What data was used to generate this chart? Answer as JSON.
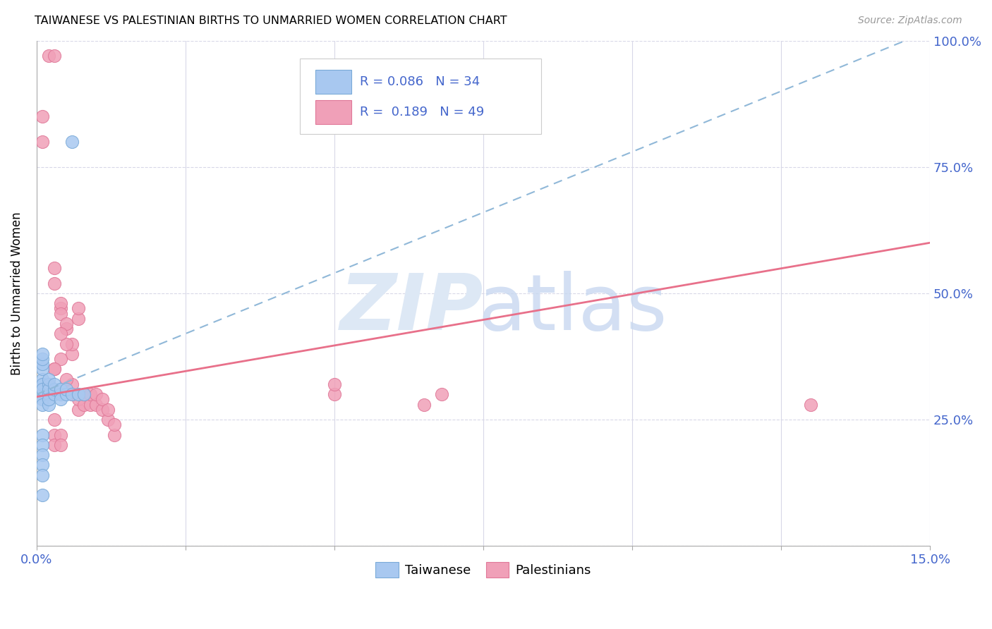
{
  "title": "TAIWANESE VS PALESTINIAN BIRTHS TO UNMARRIED WOMEN CORRELATION CHART",
  "source": "Source: ZipAtlas.com",
  "xlabel_taiwanese": "Taiwanese",
  "xlabel_palestinian": "Palestinians",
  "ylabel": "Births to Unmarried Women",
  "xlim": [
    0.0,
    0.15
  ],
  "ylim": [
    0.0,
    1.0
  ],
  "R_taiwanese": 0.086,
  "N_taiwanese": 34,
  "R_palestinian": 0.189,
  "N_palestinian": 49,
  "color_taiwanese": "#a8c8f0",
  "color_palestinian": "#f0a0b8",
  "color_tw_edge": "#7aaad8",
  "color_pal_edge": "#e07898",
  "color_tw_line": "#90b8d8",
  "color_pal_line": "#e8708a",
  "color_text_blue": "#4466cc",
  "background_color": "#ffffff",
  "grid_color": "#d8d8e8",
  "tw_x": [
    0.001,
    0.001,
    0.001,
    0.001,
    0.001,
    0.001,
    0.001,
    0.001,
    0.001,
    0.001,
    0.002,
    0.002,
    0.002,
    0.002,
    0.002,
    0.002,
    0.003,
    0.003,
    0.003,
    0.004,
    0.004,
    0.004,
    0.005,
    0.005,
    0.006,
    0.007,
    0.008,
    0.001,
    0.001,
    0.001,
    0.001,
    0.001,
    0.001,
    0.006
  ],
  "tw_y": [
    0.33,
    0.35,
    0.36,
    0.37,
    0.38,
    0.3,
    0.32,
    0.29,
    0.31,
    0.28,
    0.3,
    0.32,
    0.31,
    0.33,
    0.28,
    0.29,
    0.3,
    0.31,
    0.32,
    0.3,
    0.31,
    0.29,
    0.3,
    0.31,
    0.3,
    0.3,
    0.3,
    0.22,
    0.2,
    0.18,
    0.16,
    0.14,
    0.1,
    0.8
  ],
  "pal_x": [
    0.002,
    0.003,
    0.001,
    0.001,
    0.003,
    0.003,
    0.004,
    0.004,
    0.004,
    0.005,
    0.005,
    0.006,
    0.006,
    0.007,
    0.007,
    0.003,
    0.004,
    0.005,
    0.004,
    0.002,
    0.002,
    0.006,
    0.006,
    0.005,
    0.003,
    0.007,
    0.007,
    0.008,
    0.008,
    0.009,
    0.009,
    0.01,
    0.01,
    0.011,
    0.011,
    0.012,
    0.012,
    0.013,
    0.013,
    0.05,
    0.05,
    0.065,
    0.068,
    0.003,
    0.003,
    0.003,
    0.004,
    0.004,
    0.13
  ],
  "pal_y": [
    0.97,
    0.97,
    0.85,
    0.8,
    0.55,
    0.52,
    0.47,
    0.48,
    0.46,
    0.43,
    0.44,
    0.38,
    0.4,
    0.45,
    0.47,
    0.35,
    0.37,
    0.4,
    0.42,
    0.3,
    0.32,
    0.3,
    0.32,
    0.33,
    0.35,
    0.27,
    0.29,
    0.28,
    0.3,
    0.28,
    0.3,
    0.28,
    0.3,
    0.27,
    0.29,
    0.25,
    0.27,
    0.22,
    0.24,
    0.3,
    0.32,
    0.28,
    0.3,
    0.22,
    0.25,
    0.2,
    0.22,
    0.2,
    0.28
  ],
  "tw_line_x": [
    0.0,
    0.15
  ],
  "tw_line_y": [
    0.3,
    1.02
  ],
  "pal_line_x": [
    0.0,
    0.15
  ],
  "pal_line_y": [
    0.295,
    0.6
  ]
}
